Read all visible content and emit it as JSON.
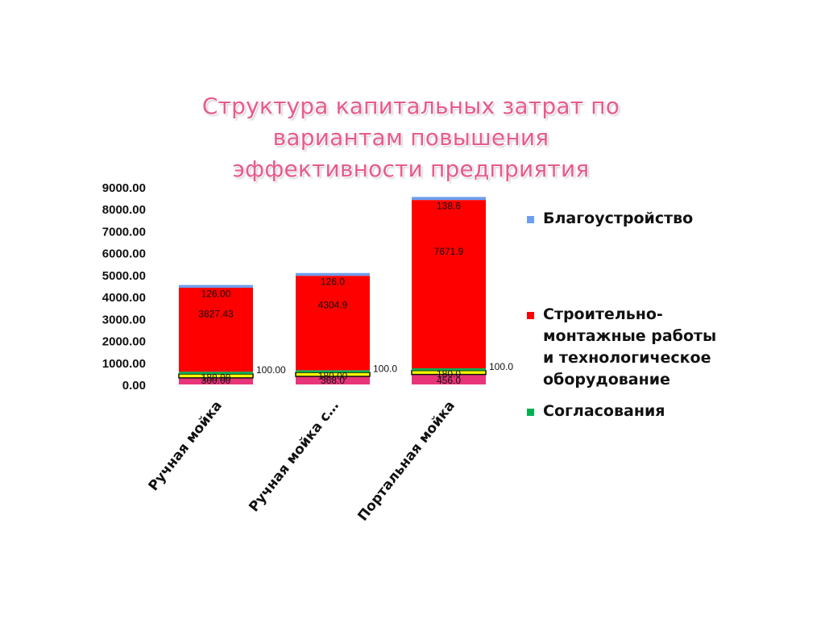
{
  "title_lines": [
    "Структура капитальных затрат по",
    "вариантам повышения",
    "эффективности предприятия"
  ],
  "colors": {
    "blago": "#6d9ef0",
    "smr": "#ff0000",
    "soglas": "#00b050",
    "yellow": "#ffff00",
    "base": "#e8357a",
    "title": "#e85a8e"
  },
  "chart_data": {
    "type": "bar",
    "stacked": true,
    "categories": [
      "Ручная мойка",
      "Ручная мойка с…",
      "Портальная мойка"
    ],
    "ylim": [
      0,
      9000
    ],
    "y_ticks": [
      "0.00",
      "1000.00",
      "2000.00",
      "3000.00",
      "4000.00",
      "5000.00",
      "6000.00",
      "7000.00",
      "8000.00",
      "9000.00"
    ],
    "series": [
      {
        "key": "base",
        "values": [
          300,
          368,
          456
        ],
        "labels": [
          "300.00",
          "368.0",
          "456.0"
        ]
      },
      {
        "key": "yellow",
        "values": [
          180,
          180,
          180
        ],
        "labels": [
          "180.00",
          "180.00",
          "180.0"
        ]
      },
      {
        "key": "soglas",
        "name": "Согласования",
        "values": [
          100,
          100,
          100
        ],
        "labels": [
          "100.00",
          "100.0",
          "100.0"
        ]
      },
      {
        "key": "smr",
        "name": "Строительно-монтажные работы и технологическое оборудование",
        "values": [
          3827.43,
          4304.9,
          7671.9
        ],
        "labels": [
          "3827.43",
          "4304.9",
          "7671.9"
        ]
      },
      {
        "key": "blago",
        "name": "Благоустройство",
        "values": [
          126,
          126,
          138.6
        ],
        "labels": [
          "126.00",
          "126.0",
          "138.6"
        ]
      }
    ],
    "legend": {
      "position": "right",
      "entries": [
        {
          "key": "blago",
          "lines": [
            "Благоустройство"
          ]
        },
        {
          "key": "smr",
          "lines": [
            "Строительно-",
            "монтажные работы",
            "и технологическое",
            "оборудование"
          ]
        },
        {
          "key": "soglas",
          "lines": [
            "Согласования"
          ]
        }
      ]
    }
  }
}
